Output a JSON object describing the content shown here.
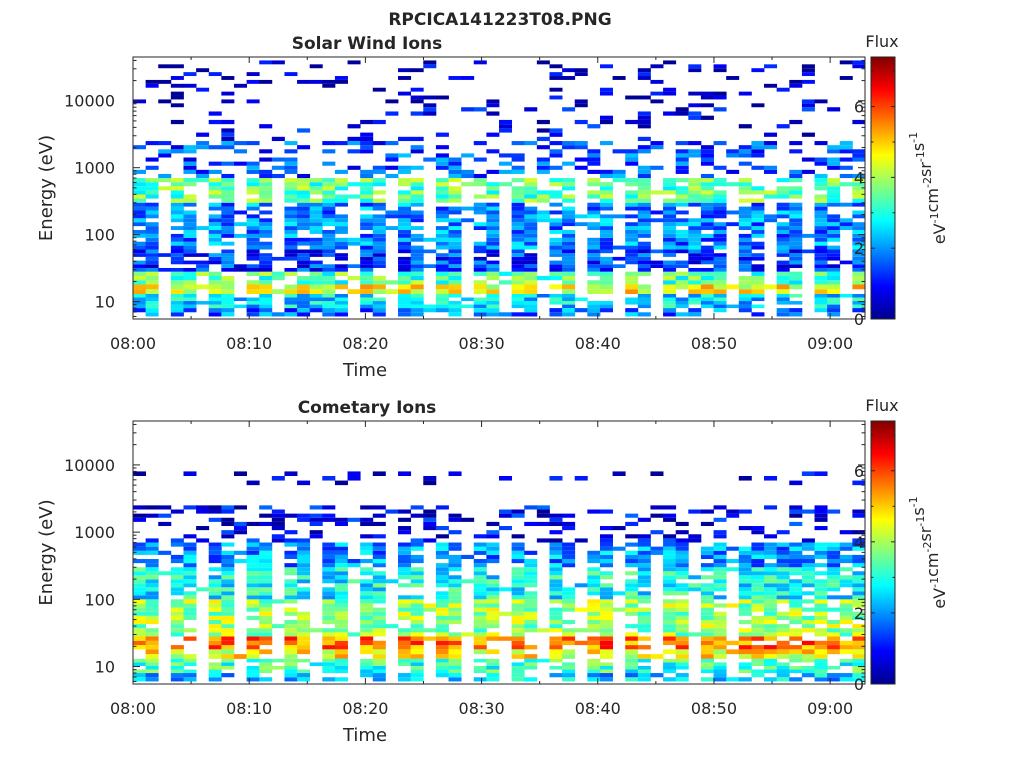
{
  "figure": {
    "title": "RPCICA141223T08.PNG"
  },
  "colors": {
    "colormap": [
      "#00008f",
      "#0000ff",
      "#0080ff",
      "#00ffff",
      "#80ff80",
      "#ffff00",
      "#ff8000",
      "#ff0000",
      "#800000"
    ],
    "axis": "#262626"
  },
  "chart_data": [
    {
      "type": "heatmap",
      "title": "Solar Wind Ions",
      "xlabel": "Time",
      "ylabel": "Energy (eV)",
      "yscale": "log",
      "ylim": [
        5.5,
        45000
      ],
      "xlim": [
        "08:00",
        "09:03"
      ],
      "xticks": [
        "08:00",
        "08:10",
        "08:20",
        "08:30",
        "08:40",
        "08:50",
        "09:00"
      ],
      "yticks": [
        10,
        100,
        1000,
        10000
      ],
      "yticklabels": [
        "10",
        "100",
        "1000",
        "10000"
      ],
      "colorbar": {
        "title": "Flux",
        "label": "eV-1cm-2sr-1s-1",
        "range": [
          0,
          7.4
        ],
        "ticks": [
          0,
          2,
          4,
          6
        ]
      },
      "bands": [
        {
          "energy_range": [
            18,
            28
          ],
          "flux": 3.4
        },
        {
          "energy_range": [
            13,
            18
          ],
          "flux": 4.6
        },
        {
          "energy_range": [
            8,
            13
          ],
          "flux": 2.5
        },
        {
          "energy_range": [
            6,
            8
          ],
          "flux": 1.8
        },
        {
          "energy_range": [
            28,
            60
          ],
          "flux": 1.3
        },
        {
          "energy_range": [
            60,
            300
          ],
          "flux": 1.9
        },
        {
          "energy_range": [
            300,
            700
          ],
          "flux": 3.5
        },
        {
          "energy_range": [
            700,
            2500
          ],
          "flux": 1.5
        },
        {
          "energy_range": [
            2500,
            8000
          ],
          "flux": 0.7
        },
        {
          "energy_range": [
            8000,
            40000
          ],
          "flux": 0.4
        }
      ]
    },
    {
      "type": "heatmap",
      "title": "Cometary Ions",
      "xlabel": "Time",
      "ylabel": "Energy (eV)",
      "yscale": "log",
      "ylim": [
        5.5,
        45000
      ],
      "xlim": [
        "08:00",
        "09:03"
      ],
      "xticks": [
        "08:00",
        "08:10",
        "08:20",
        "08:30",
        "08:40",
        "08:50",
        "09:00"
      ],
      "yticks": [
        10,
        100,
        1000,
        10000
      ],
      "yticklabels": [
        "10",
        "100",
        "1000",
        "10000"
      ],
      "colorbar": {
        "title": "Flux",
        "label": "eV-1cm-2sr-1s-1",
        "range": [
          0,
          7.4
        ],
        "ticks": [
          0,
          2,
          4,
          6
        ]
      },
      "bands": [
        {
          "energy_range": [
            18,
            28
          ],
          "flux": 5.6
        },
        {
          "energy_range": [
            13,
            18
          ],
          "flux": 4.6
        },
        {
          "energy_range": [
            8,
            13
          ],
          "flux": 3.2
        },
        {
          "energy_range": [
            6,
            8
          ],
          "flux": 2.4
        },
        {
          "energy_range": [
            28,
            100
          ],
          "flux": 3.9
        },
        {
          "energy_range": [
            100,
            300
          ],
          "flux": 2.8
        },
        {
          "energy_range": [
            300,
            700
          ],
          "flux": 2.0
        },
        {
          "energy_range": [
            700,
            2500
          ],
          "flux": 0.8
        },
        {
          "energy_range": [
            5000,
            8000
          ],
          "flux": 0.5
        }
      ]
    }
  ]
}
